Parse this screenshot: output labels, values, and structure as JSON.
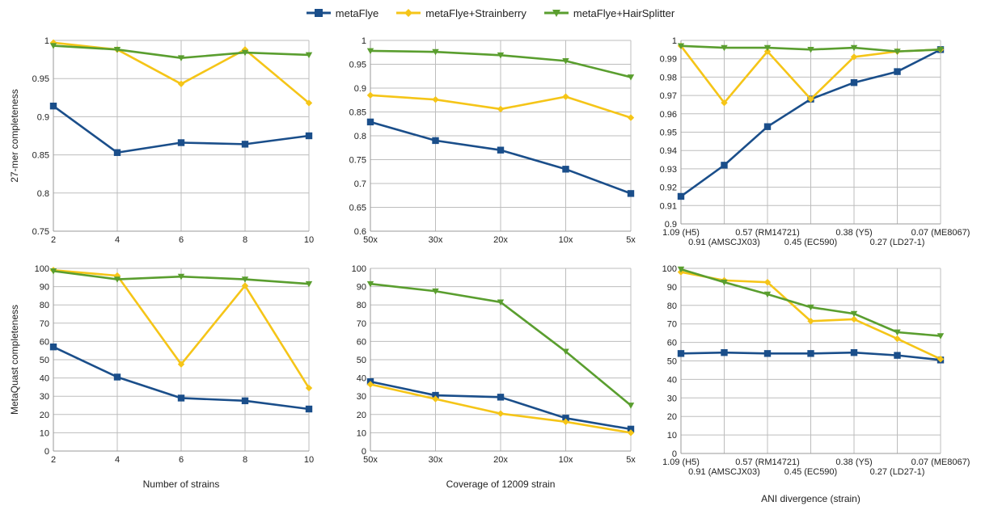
{
  "legend": [
    {
      "name": "metaFlye",
      "color": "#1a4e8a",
      "marker": "square"
    },
    {
      "name": "metaFlye+Strainberry",
      "color": "#f5c518",
      "marker": "diamond"
    },
    {
      "name": "metaFlye+HairSplitter",
      "color": "#5a9e2f",
      "marker": "triangle-down"
    }
  ],
  "chart_data": [
    {
      "type": "line",
      "categories": [
        "2",
        "4",
        "6",
        "8",
        "10"
      ],
      "xlabel": "",
      "ylabel": "27-mer completeness",
      "ylim": [
        0.75,
        1
      ],
      "yticks": [
        0.75,
        0.8,
        0.85,
        0.9,
        0.95,
        1
      ],
      "ytick_labels": [
        "0.75",
        "0.8",
        "0.85",
        "0.9",
        "0.95",
        "1"
      ],
      "grid": true,
      "series": [
        {
          "name": "metaFlye",
          "values": [
            0.914,
            0.853,
            0.866,
            0.864,
            0.875
          ]
        },
        {
          "name": "metaFlye+Strainberry",
          "values": [
            0.997,
            0.988,
            0.943,
            0.988,
            0.918
          ]
        },
        {
          "name": "metaFlye+HairSplitter",
          "values": [
            0.993,
            0.988,
            0.977,
            0.984,
            0.981
          ]
        }
      ]
    },
    {
      "type": "line",
      "categories": [
        "50x",
        "30x",
        "20x",
        "10x",
        "5x"
      ],
      "xlabel": "",
      "ylabel": "",
      "ylim": [
        0.6,
        1
      ],
      "yticks": [
        0.6,
        0.65,
        0.7,
        0.75,
        0.8,
        0.85,
        0.9,
        0.95,
        1
      ],
      "ytick_labels": [
        "0.6",
        "0.65",
        "0.7",
        "0.75",
        "0.8",
        "0.85",
        "0.9",
        "0.95",
        "1"
      ],
      "grid": true,
      "series": [
        {
          "name": "metaFlye",
          "values": [
            0.829,
            0.79,
            0.77,
            0.73,
            0.679
          ]
        },
        {
          "name": "metaFlye+Strainberry",
          "values": [
            0.885,
            0.876,
            0.856,
            0.882,
            0.838
          ]
        },
        {
          "name": "metaFlye+HairSplitter",
          "values": [
            0.978,
            0.976,
            0.969,
            0.957,
            0.923
          ]
        }
      ]
    },
    {
      "type": "line",
      "categories": [
        "1.09 (H5)",
        "0.91 (AMSCJX03)",
        "0.57 (RM14721)",
        "0.45 (EC590)",
        "0.38 (Y5)",
        "0.27 (LD27-1)",
        "0.07 (ME8067)"
      ],
      "xlabel": "",
      "ylabel": "",
      "ylim": [
        0.9,
        1
      ],
      "yticks": [
        0.9,
        0.91,
        0.92,
        0.93,
        0.94,
        0.95,
        0.96,
        0.97,
        0.98,
        0.99,
        1
      ],
      "ytick_labels": [
        "0.9",
        "0.91",
        "0.92",
        "0.93",
        "0.94",
        "0.95",
        "0.96",
        "0.97",
        "0.98",
        "0.99",
        "1"
      ],
      "grid": true,
      "series": [
        {
          "name": "metaFlye",
          "values": [
            0.915,
            0.932,
            0.953,
            0.968,
            0.977,
            0.983,
            0.995
          ]
        },
        {
          "name": "metaFlye+Strainberry",
          "values": [
            0.997,
            0.966,
            0.994,
            0.968,
            0.991,
            0.994,
            0.995
          ]
        },
        {
          "name": "metaFlye+HairSplitter",
          "values": [
            0.997,
            0.996,
            0.996,
            0.995,
            0.996,
            0.994,
            0.995
          ]
        }
      ]
    },
    {
      "type": "line",
      "categories": [
        "2",
        "4",
        "6",
        "8",
        "10"
      ],
      "xlabel": "Number of strains",
      "ylabel": "MetaQuast completeness",
      "ylim": [
        0,
        100
      ],
      "yticks": [
        0,
        10,
        20,
        30,
        40,
        50,
        60,
        70,
        80,
        90,
        100
      ],
      "ytick_labels": [
        "0",
        "10",
        "20",
        "30",
        "40",
        "50",
        "60",
        "70",
        "80",
        "90",
        "100"
      ],
      "grid": true,
      "series": [
        {
          "name": "metaFlye",
          "values": [
            57,
            40.5,
            29,
            27.5,
            23
          ]
        },
        {
          "name": "metaFlye+Strainberry",
          "values": [
            99,
            96,
            47.5,
            90.5,
            34.5
          ]
        },
        {
          "name": "metaFlye+HairSplitter",
          "values": [
            98.5,
            94,
            95.5,
            94,
            91.5
          ]
        }
      ]
    },
    {
      "type": "line",
      "categories": [
        "50x",
        "30x",
        "20x",
        "10x",
        "5x"
      ],
      "xlabel": "Coverage of 12009 strain",
      "ylabel": "",
      "ylim": [
        0,
        100
      ],
      "yticks": [
        0,
        10,
        20,
        30,
        40,
        50,
        60,
        70,
        80,
        90,
        100
      ],
      "ytick_labels": [
        "0",
        "10",
        "20",
        "30",
        "40",
        "50",
        "60",
        "70",
        "80",
        "90",
        "100"
      ],
      "grid": true,
      "series": [
        {
          "name": "metaFlye",
          "values": [
            38,
            30.5,
            29.5,
            18,
            12
          ]
        },
        {
          "name": "metaFlye+Strainberry",
          "values": [
            36.5,
            28.5,
            20.5,
            16,
            10
          ]
        },
        {
          "name": "metaFlye+HairSplitter",
          "values": [
            91.5,
            87.5,
            81.5,
            54.5,
            25
          ]
        }
      ]
    },
    {
      "type": "line",
      "categories": [
        "1.09 (H5)",
        "0.91 (AMSCJX03)",
        "0.57 (RM14721)",
        "0.45 (EC590)",
        "0.38 (Y5)",
        "0.27 (LD27-1)",
        "0.07 (ME8067)"
      ],
      "xlabel": "ANI divergence (strain)",
      "ylabel": "",
      "ylim": [
        0,
        100
      ],
      "yticks": [
        0,
        10,
        20,
        30,
        40,
        50,
        60,
        70,
        80,
        90,
        100
      ],
      "ytick_labels": [
        "0",
        "10",
        "20",
        "30",
        "40",
        "50",
        "60",
        "70",
        "80",
        "90",
        "100"
      ],
      "grid": true,
      "series": [
        {
          "name": "metaFlye",
          "values": [
            54,
            54.5,
            54,
            54,
            54.5,
            53,
            50.5
          ]
        },
        {
          "name": "metaFlye+Strainberry",
          "values": [
            98,
            93.5,
            92.5,
            71.5,
            72.5,
            62,
            51
          ]
        },
        {
          "name": "metaFlye+HairSplitter",
          "values": [
            99.5,
            92.5,
            86,
            79,
            75.5,
            65.5,
            63.5
          ]
        }
      ]
    }
  ]
}
